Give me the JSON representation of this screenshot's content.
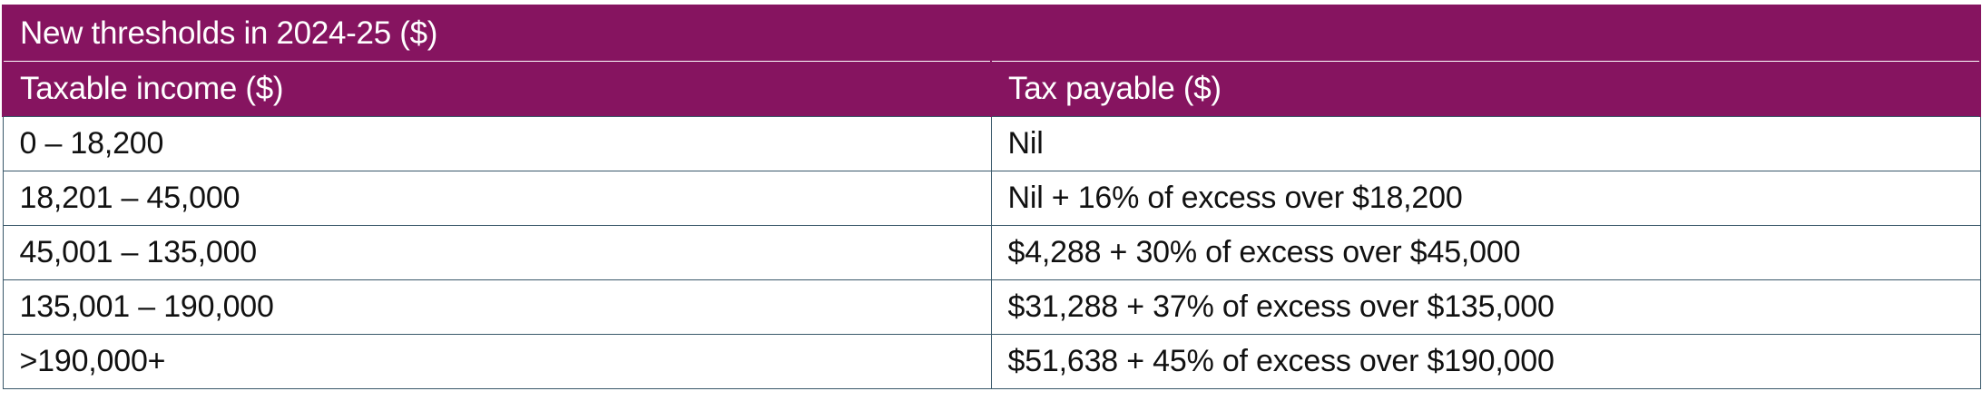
{
  "table": {
    "title": "New thresholds in 2024-25 ($)",
    "headers": [
      "Taxable income ($)",
      "Tax payable ($)"
    ],
    "rows": [
      [
        "0 – 18,200",
        "Nil"
      ],
      [
        "18,201 – 45,000",
        "Nil + 16% of excess over $18,200"
      ],
      [
        "45,001 – 135,000",
        "$4,288 + 30% of excess over $45,000"
      ],
      [
        "135,001 – 190,000",
        "$31,288 + 37% of excess over $135,000"
      ],
      [
        ">190,000+",
        "$51,638 + 45% of excess over $190,000"
      ]
    ]
  },
  "colors": {
    "header_bg": "#861460",
    "header_text": "#ffffff",
    "border": "#39586a"
  }
}
